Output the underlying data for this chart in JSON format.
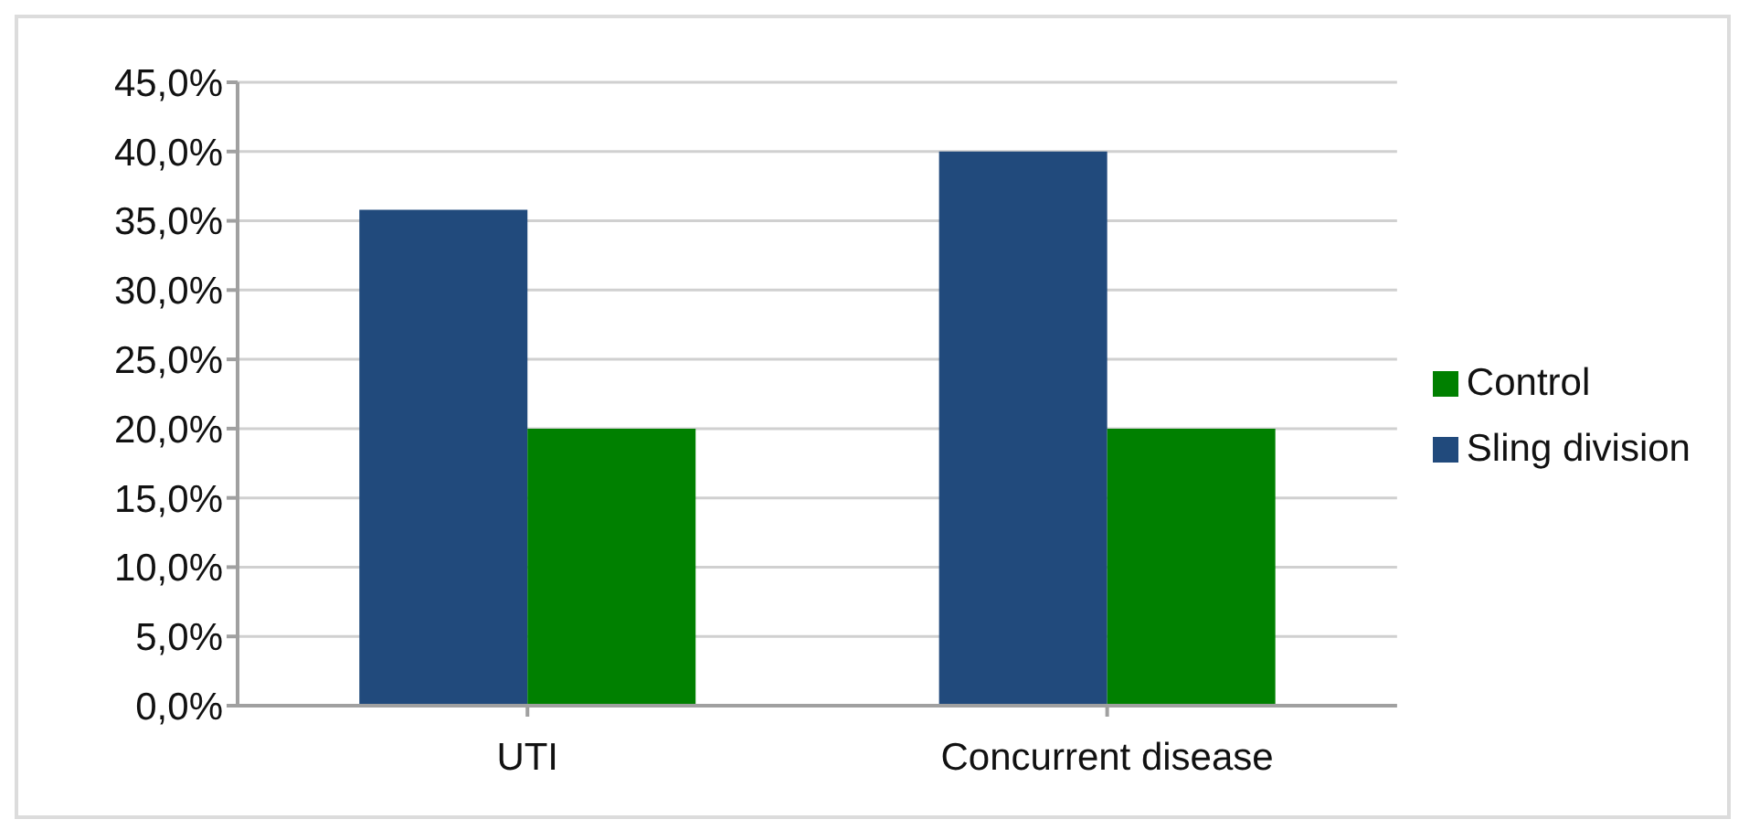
{
  "chart_data": {
    "type": "bar",
    "categories": [
      "UTI",
      "Concurrent disease"
    ],
    "series": [
      {
        "name": "Sling division",
        "color": "#214a7c",
        "values": [
          35.8,
          40.0
        ]
      },
      {
        "name": "Control",
        "color": "#008000",
        "values": [
          20.0,
          20.0
        ]
      }
    ],
    "ylim": [
      0,
      45
    ],
    "yticks": [
      {
        "value": 0,
        "label": "0,0%"
      },
      {
        "value": 5,
        "label": "5,0%"
      },
      {
        "value": 10,
        "label": "10,0%"
      },
      {
        "value": 15,
        "label": "15,0%"
      },
      {
        "value": 20,
        "label": "20,0%"
      },
      {
        "value": 25,
        "label": "25,0%"
      },
      {
        "value": 30,
        "label": "30,0%"
      },
      {
        "value": 35,
        "label": "35,0%"
      },
      {
        "value": 40,
        "label": "40,0%"
      },
      {
        "value": 45,
        "label": "45,0%"
      }
    ],
    "grid": "y",
    "legend": "right"
  }
}
